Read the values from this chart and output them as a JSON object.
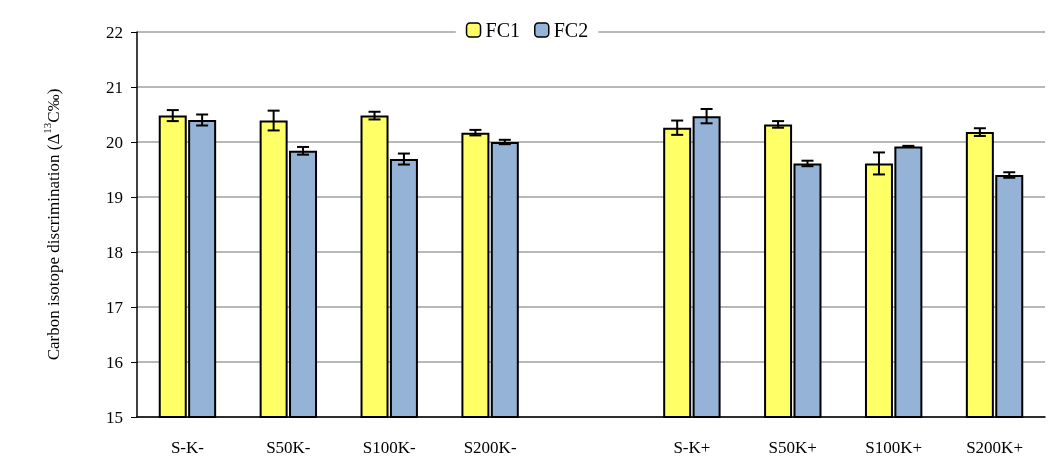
{
  "chart_data": {
    "type": "bar",
    "ylabel": "Carbon isotope discrimination (Δ$^{13}$C‰)",
    "categories": [
      "S-K-",
      "S50K-",
      "S100K-",
      "S200K-",
      null,
      "S-K+",
      "S50K+",
      "S100K+",
      "S200K+"
    ],
    "series": [
      {
        "name": "FC1",
        "color": "#ffff66",
        "values": [
          20.48,
          20.39,
          20.48,
          20.17,
          null,
          20.26,
          20.32,
          19.61,
          20.18
        ],
        "errors": [
          0.1,
          0.18,
          0.07,
          0.05,
          null,
          0.13,
          0.06,
          0.2,
          0.07
        ]
      },
      {
        "name": "FC2",
        "color": "#95b3d7",
        "values": [
          20.4,
          19.84,
          19.69,
          20.0,
          null,
          20.47,
          19.61,
          19.92,
          19.4
        ],
        "errors": [
          0.1,
          0.07,
          0.1,
          0.04,
          null,
          0.13,
          0.05,
          0.01,
          0.05
        ]
      }
    ],
    "ylim": [
      15,
      22
    ],
    "yticks": [
      15,
      16,
      17,
      18,
      19,
      20,
      21,
      22
    ],
    "grid": "y",
    "legend": "top"
  }
}
